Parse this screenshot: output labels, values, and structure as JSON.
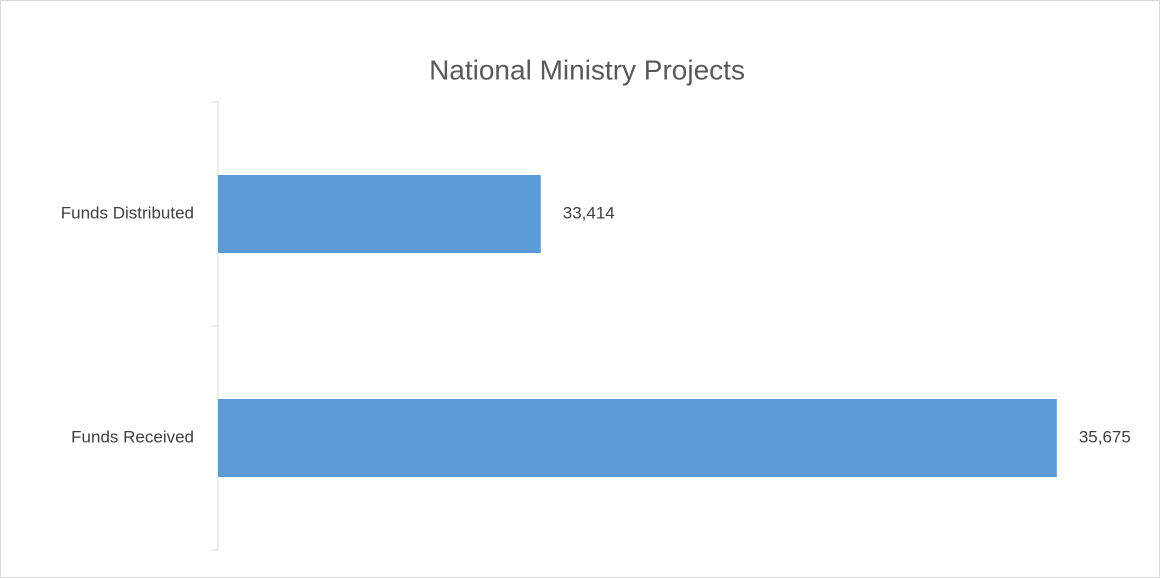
{
  "chart_data": {
    "type": "bar",
    "orientation": "horizontal",
    "title": "National Ministry Projects",
    "categories": [
      "Funds Distributed",
      "Funds Received"
    ],
    "values": [
      33414,
      35675
    ],
    "value_labels": [
      "33,414",
      "35,675"
    ],
    "color": "#5b9bd5",
    "xlim": [
      32000,
      36000
    ]
  }
}
